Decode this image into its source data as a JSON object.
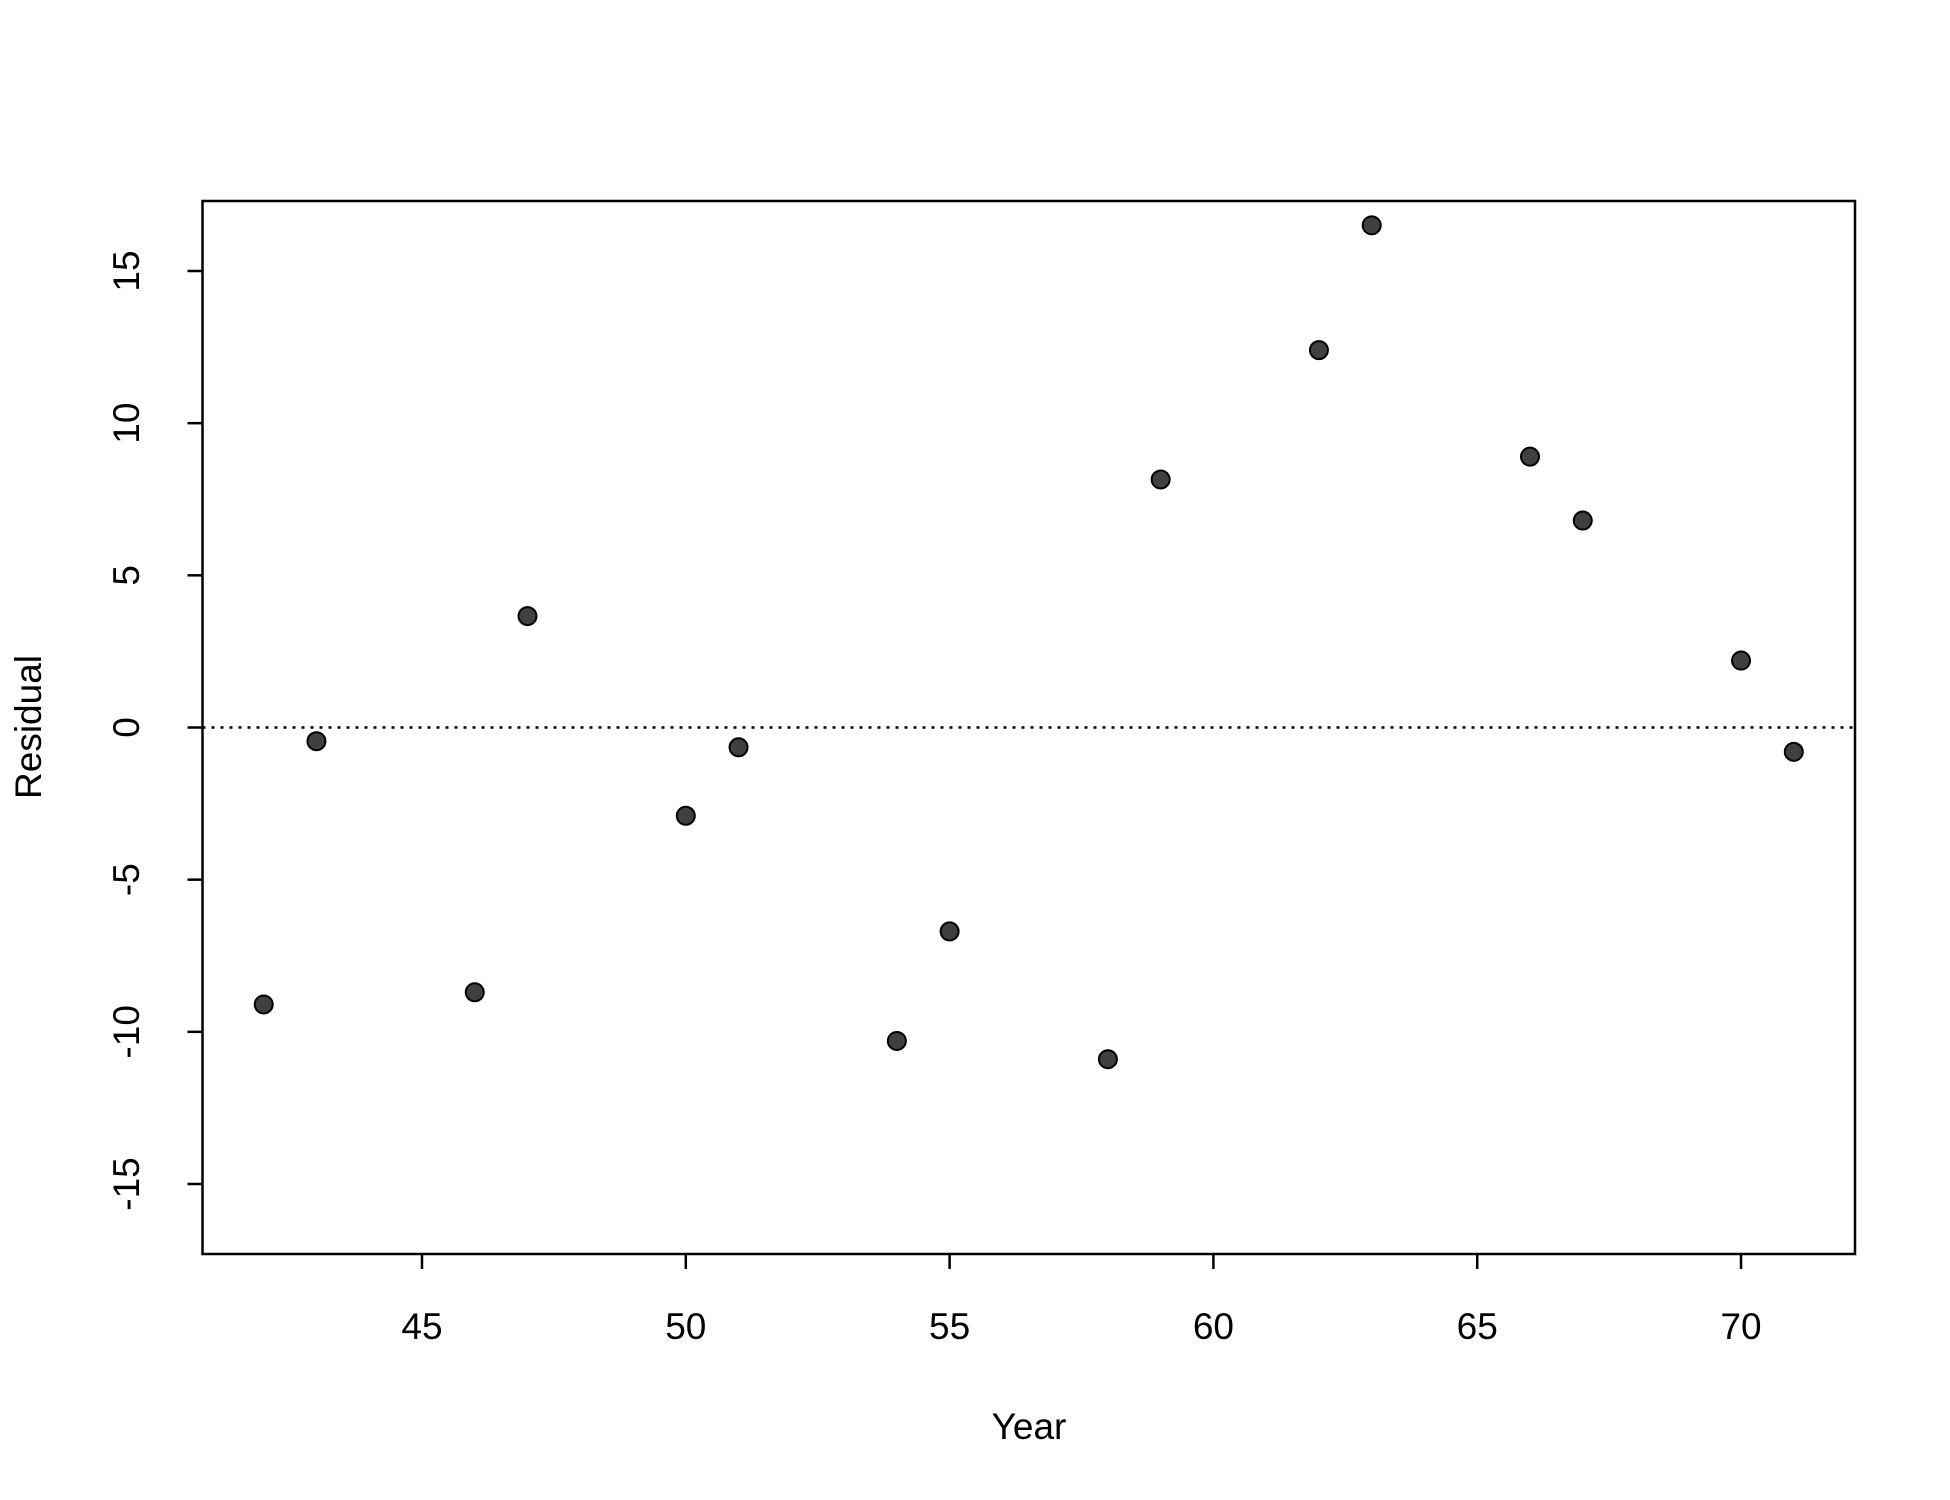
{
  "chart_data": {
    "type": "scatter",
    "xlabel": "Year",
    "ylabel": "Residual",
    "x": [
      42,
      43,
      46,
      47,
      50,
      51,
      54,
      55,
      58,
      59,
      62,
      63,
      66,
      67,
      70,
      71
    ],
    "series": [
      {
        "color": "#404040",
        "values": [
          -9.1,
          -0.45,
          -8.7,
          3.66,
          -2.9,
          -0.65,
          -10.3,
          -6.7,
          -10.9,
          8.15,
          12.4,
          16.5,
          8.9,
          6.8,
          2.2,
          -0.8
        ]
      }
    ],
    "xlim": [
      40.84,
      72.16
    ],
    "ylim": [
      -17.3,
      17.3
    ],
    "xticks": [
      45,
      50,
      55,
      60,
      65,
      70
    ],
    "yticks": [
      -15,
      -10,
      -5,
      0,
      5,
      10,
      15
    ],
    "hline": 0
  }
}
